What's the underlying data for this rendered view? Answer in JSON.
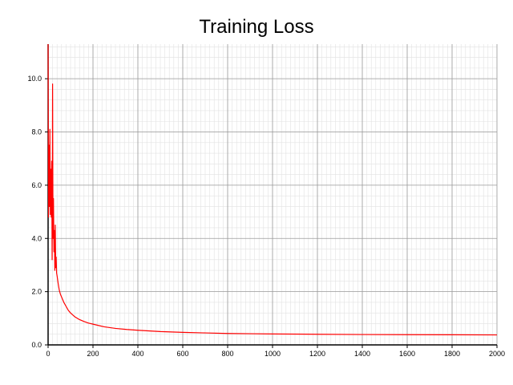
{
  "chart_data": {
    "type": "line",
    "title": "Training Loss",
    "xlabel": "",
    "ylabel": "",
    "xlim": [
      0,
      2000
    ],
    "ylim": [
      0,
      11.3
    ],
    "x_ticks": [
      0,
      200,
      400,
      600,
      800,
      1000,
      1200,
      1400,
      1600,
      1800,
      2000
    ],
    "x_tick_labels": [
      "0",
      "200",
      "400",
      "600",
      "800",
      "1000",
      "1200",
      "1400",
      "1600",
      "1800",
      "2000"
    ],
    "y_ticks": [
      0,
      2,
      4,
      6,
      8,
      10
    ],
    "y_tick_labels": [
      "0.0",
      "2.0",
      "4.0",
      "6.0",
      "8.0",
      "10.0"
    ],
    "grid": true,
    "legend": "none",
    "series": [
      {
        "color": "#ff0000",
        "x": [
          0,
          2,
          4,
          6,
          8,
          10,
          12,
          14,
          16,
          18,
          20,
          22,
          24,
          26,
          28,
          30,
          32,
          34,
          36,
          38,
          40,
          45,
          50,
          55,
          60,
          70,
          80,
          90,
          100,
          120,
          140,
          160,
          180,
          200,
          250,
          300,
          350,
          400,
          500,
          600,
          700,
          800,
          900,
          1000,
          1200,
          1400,
          1600,
          1800,
          2000
        ],
        "y": [
          11.3,
          4.8,
          7.5,
          5.2,
          8.1,
          4.9,
          6.6,
          4.8,
          6.9,
          3.2,
          9.8,
          4.0,
          5.5,
          3.5,
          4.3,
          2.8,
          4.5,
          2.9,
          3.3,
          2.7,
          2.6,
          2.3,
          2.05,
          1.9,
          1.8,
          1.6,
          1.45,
          1.3,
          1.2,
          1.05,
          0.95,
          0.88,
          0.82,
          0.78,
          0.68,
          0.62,
          0.58,
          0.55,
          0.5,
          0.47,
          0.45,
          0.43,
          0.42,
          0.41,
          0.4,
          0.39,
          0.385,
          0.38,
          0.375
        ]
      }
    ]
  }
}
